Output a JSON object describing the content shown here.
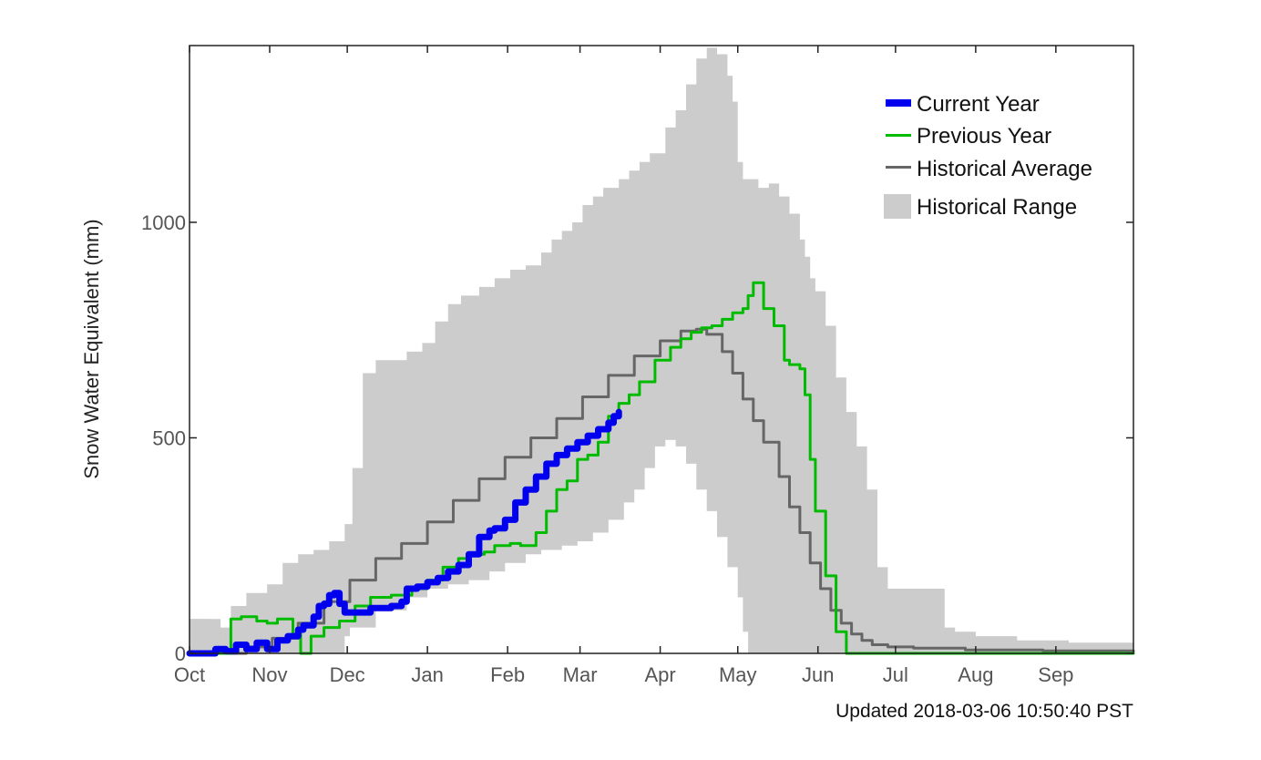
{
  "chart_data": {
    "type": "area",
    "ylabel": "Snow Water Equivalent (mm)",
    "xlabel": "",
    "ylim": [
      0,
      1410
    ],
    "yticks": [
      0,
      500,
      1000
    ],
    "xlim": [
      0,
      365
    ],
    "x_unit": "days since Oct 1",
    "xtick_labels": [
      "Oct",
      "Nov",
      "Dec",
      "Jan",
      "Feb",
      "Mar",
      "Apr",
      "May",
      "Jun",
      "Jul",
      "Aug",
      "Sep"
    ],
    "xtick_positions": [
      0,
      31,
      61,
      92,
      123,
      151,
      182,
      212,
      243,
      273,
      304,
      335
    ],
    "footer": "Updated 2018-03-06 10:50:40 PST",
    "legend": {
      "position": "top-right",
      "entries": [
        {
          "label": "Current Year",
          "color": "#0000ee",
          "kind": "thick-line"
        },
        {
          "label": "Previous Year",
          "color": "#00bb00",
          "kind": "line"
        },
        {
          "label": "Historical Average",
          "color": "#666666",
          "kind": "line"
        },
        {
          "label": "Historical Range",
          "color": "#cccccc",
          "kind": "box"
        }
      ]
    },
    "series": [
      {
        "name": "Historical Range",
        "color": "#cccccc",
        "upper": [
          [
            0,
            80
          ],
          [
            8,
            80
          ],
          [
            12,
            60
          ],
          [
            16,
            110
          ],
          [
            22,
            140
          ],
          [
            30,
            160
          ],
          [
            36,
            210
          ],
          [
            42,
            230
          ],
          [
            48,
            240
          ],
          [
            54,
            260
          ],
          [
            60,
            300
          ],
          [
            63,
            430
          ],
          [
            67,
            650
          ],
          [
            72,
            680
          ],
          [
            80,
            680
          ],
          [
            84,
            700
          ],
          [
            90,
            720
          ],
          [
            95,
            770
          ],
          [
            100,
            810
          ],
          [
            105,
            830
          ],
          [
            112,
            850
          ],
          [
            118,
            870
          ],
          [
            124,
            890
          ],
          [
            130,
            900
          ],
          [
            136,
            930
          ],
          [
            140,
            960
          ],
          [
            144,
            980
          ],
          [
            148,
            1000
          ],
          [
            152,
            1040
          ],
          [
            156,
            1060
          ],
          [
            160,
            1080
          ],
          [
            166,
            1100
          ],
          [
            170,
            1120
          ],
          [
            174,
            1140
          ],
          [
            178,
            1160
          ],
          [
            184,
            1220
          ],
          [
            188,
            1260
          ],
          [
            192,
            1320
          ],
          [
            196,
            1380
          ],
          [
            200,
            1405
          ],
          [
            204,
            1390
          ],
          [
            208,
            1340
          ],
          [
            210,
            1280
          ],
          [
            212,
            1140
          ],
          [
            214,
            1100
          ],
          [
            218,
            1100
          ],
          [
            220,
            1080
          ],
          [
            224,
            1090
          ],
          [
            228,
            1060
          ],
          [
            232,
            1020
          ],
          [
            236,
            960
          ],
          [
            238,
            920
          ],
          [
            240,
            870
          ],
          [
            242,
            840
          ],
          [
            246,
            760
          ],
          [
            250,
            640
          ],
          [
            254,
            560
          ],
          [
            258,
            480
          ],
          [
            262,
            380
          ],
          [
            266,
            200
          ],
          [
            270,
            150
          ],
          [
            290,
            150
          ],
          [
            292,
            60
          ],
          [
            296,
            50
          ],
          [
            304,
            40
          ],
          [
            320,
            30
          ],
          [
            340,
            25
          ],
          [
            358,
            25
          ],
          [
            365,
            30
          ]
        ],
        "lower": [
          [
            0,
            0
          ],
          [
            60,
            0
          ],
          [
            62,
            40
          ],
          [
            72,
            60
          ],
          [
            84,
            100
          ],
          [
            92,
            130
          ],
          [
            100,
            150
          ],
          [
            108,
            160
          ],
          [
            116,
            170
          ],
          [
            122,
            190
          ],
          [
            130,
            210
          ],
          [
            136,
            230
          ],
          [
            144,
            240
          ],
          [
            150,
            250
          ],
          [
            156,
            260
          ],
          [
            162,
            280
          ],
          [
            168,
            310
          ],
          [
            172,
            350
          ],
          [
            176,
            380
          ],
          [
            180,
            430
          ],
          [
            184,
            480
          ],
          [
            188,
            495
          ],
          [
            192,
            480
          ],
          [
            196,
            440
          ],
          [
            200,
            380
          ],
          [
            204,
            330
          ],
          [
            208,
            270
          ],
          [
            212,
            200
          ],
          [
            214,
            130
          ],
          [
            216,
            50
          ],
          [
            220,
            0
          ],
          [
            365,
            0
          ]
        ]
      },
      {
        "name": "Historical Average",
        "color": "#666666",
        "points": [
          [
            0,
            0
          ],
          [
            15,
            0
          ],
          [
            22,
            15
          ],
          [
            32,
            35
          ],
          [
            42,
            70
          ],
          [
            52,
            120
          ],
          [
            62,
            170
          ],
          [
            72,
            220
          ],
          [
            82,
            255
          ],
          [
            92,
            305
          ],
          [
            102,
            355
          ],
          [
            112,
            405
          ],
          [
            122,
            455
          ],
          [
            132,
            500
          ],
          [
            142,
            545
          ],
          [
            152,
            595
          ],
          [
            162,
            645
          ],
          [
            172,
            690
          ],
          [
            182,
            725
          ],
          [
            190,
            748
          ],
          [
            196,
            752
          ],
          [
            200,
            740
          ],
          [
            206,
            700
          ],
          [
            210,
            650
          ],
          [
            214,
            590
          ],
          [
            218,
            540
          ],
          [
            222,
            490
          ],
          [
            228,
            410
          ],
          [
            232,
            340
          ],
          [
            236,
            280
          ],
          [
            240,
            210
          ],
          [
            244,
            150
          ],
          [
            248,
            100
          ],
          [
            252,
            70
          ],
          [
            256,
            45
          ],
          [
            260,
            30
          ],
          [
            264,
            20
          ],
          [
            270,
            15
          ],
          [
            280,
            12
          ],
          [
            300,
            8
          ],
          [
            330,
            6
          ],
          [
            365,
            5
          ]
        ]
      },
      {
        "name": "Previous Year",
        "color": "#00bb00",
        "points": [
          [
            0,
            0
          ],
          [
            10,
            0
          ],
          [
            16,
            80
          ],
          [
            20,
            85
          ],
          [
            26,
            75
          ],
          [
            30,
            70
          ],
          [
            34,
            80
          ],
          [
            40,
            45
          ],
          [
            43,
            0
          ],
          [
            47,
            40
          ],
          [
            52,
            60
          ],
          [
            58,
            75
          ],
          [
            64,
            110
          ],
          [
            70,
            130
          ],
          [
            78,
            135
          ],
          [
            86,
            150
          ],
          [
            92,
            170
          ],
          [
            98,
            200
          ],
          [
            104,
            220
          ],
          [
            108,
            230
          ],
          [
            114,
            235
          ],
          [
            118,
            250
          ],
          [
            124,
            255
          ],
          [
            128,
            250
          ],
          [
            131,
            250
          ],
          [
            134,
            280
          ],
          [
            138,
            330
          ],
          [
            142,
            380
          ],
          [
            146,
            400
          ],
          [
            150,
            450
          ],
          [
            154,
            460
          ],
          [
            158,
            490
          ],
          [
            162,
            550
          ],
          [
            166,
            580
          ],
          [
            170,
            600
          ],
          [
            174,
            630
          ],
          [
            180,
            680
          ],
          [
            186,
            710
          ],
          [
            190,
            730
          ],
          [
            194,
            745
          ],
          [
            198,
            755
          ],
          [
            202,
            760
          ],
          [
            206,
            775
          ],
          [
            210,
            790
          ],
          [
            214,
            800
          ],
          [
            216,
            830
          ],
          [
            218,
            860
          ],
          [
            222,
            800
          ],
          [
            226,
            760
          ],
          [
            230,
            680
          ],
          [
            232,
            670
          ],
          [
            236,
            660
          ],
          [
            238,
            600
          ],
          [
            240,
            450
          ],
          [
            242,
            330
          ],
          [
            246,
            180
          ],
          [
            250,
            50
          ],
          [
            254,
            0
          ],
          [
            365,
            0
          ]
        ]
      },
      {
        "name": "Current Year",
        "color": "#0000ee",
        "points": [
          [
            0,
            0
          ],
          [
            8,
            0
          ],
          [
            10,
            10
          ],
          [
            14,
            5
          ],
          [
            18,
            20
          ],
          [
            22,
            10
          ],
          [
            26,
            25
          ],
          [
            30,
            10
          ],
          [
            34,
            30
          ],
          [
            38,
            40
          ],
          [
            42,
            55
          ],
          [
            44,
            65
          ],
          [
            48,
            85
          ],
          [
            50,
            110
          ],
          [
            52,
            115
          ],
          [
            54,
            135
          ],
          [
            56,
            140
          ],
          [
            58,
            115
          ],
          [
            60,
            95
          ],
          [
            66,
            95
          ],
          [
            70,
            105
          ],
          [
            74,
            105
          ],
          [
            78,
            110
          ],
          [
            82,
            120
          ],
          [
            84,
            150
          ],
          [
            88,
            155
          ],
          [
            92,
            165
          ],
          [
            96,
            175
          ],
          [
            100,
            190
          ],
          [
            104,
            205
          ],
          [
            108,
            230
          ],
          [
            112,
            270
          ],
          [
            116,
            285
          ],
          [
            118,
            290
          ],
          [
            122,
            310
          ],
          [
            126,
            350
          ],
          [
            130,
            380
          ],
          [
            134,
            410
          ],
          [
            138,
            440
          ],
          [
            142,
            460
          ],
          [
            146,
            475
          ],
          [
            150,
            490
          ],
          [
            154,
            505
          ],
          [
            158,
            520
          ],
          [
            162,
            535
          ],
          [
            164,
            550
          ],
          [
            166,
            560
          ]
        ]
      }
    ]
  }
}
